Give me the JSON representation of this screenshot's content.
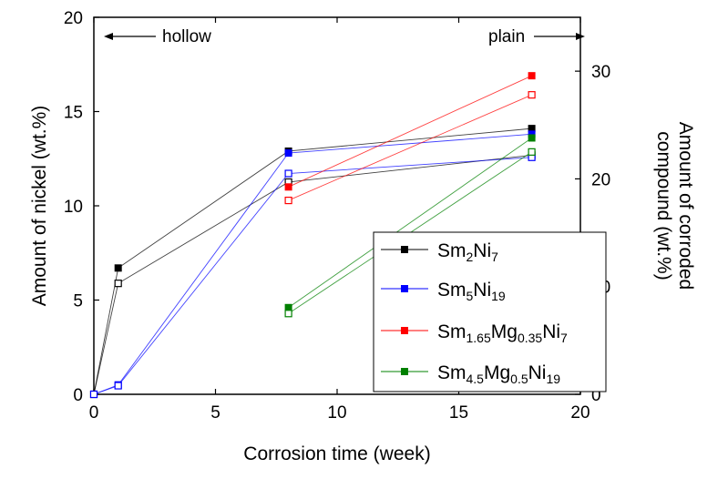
{
  "chart_data": {
    "type": "line",
    "xlabel": "Corrosion time (week)",
    "ylabel": "Amount of nickel (wt.%)",
    "ylabel_right": [
      "Amount of corroded",
      "compound (wt.%)"
    ],
    "xlim": [
      0,
      20
    ],
    "ylim": [
      0,
      20
    ],
    "ylim_right": [
      0,
      35
    ],
    "x_ticks": [
      0,
      5,
      10,
      15,
      20
    ],
    "y_ticks": [
      0,
      5,
      10,
      15,
      20
    ],
    "y_ticks_right": [
      0,
      10,
      20,
      30
    ],
    "annotations": {
      "hollow": "hollow",
      "plain": "plain"
    },
    "legend_position": "lower-right",
    "series": [
      {
        "name": "Sm2Ni7",
        "name_parts": [
          "Sm",
          "2",
          "Ni",
          "7"
        ],
        "color": "#000000",
        "nickel": {
          "x": [
            0,
            1,
            8,
            18
          ],
          "y": [
            0,
            6.7,
            12.9,
            14.1
          ]
        },
        "corroded": {
          "x": [
            0,
            1,
            8,
            18
          ],
          "y": [
            0,
            10.3,
            19.7,
            22.2
          ]
        }
      },
      {
        "name": "Sm5Ni19",
        "name_parts": [
          "Sm",
          "5",
          "Ni",
          "19"
        ],
        "color": "#0000ff",
        "nickel": {
          "x": [
            0,
            1,
            8,
            18
          ],
          "y": [
            0,
            0.5,
            12.8,
            13.8
          ]
        },
        "corroded": {
          "x": [
            0,
            1,
            8,
            18
          ],
          "y": [
            0,
            0.8,
            20.5,
            22.0
          ]
        }
      },
      {
        "name": "Sm1.65Mg0.35Ni7",
        "name_parts": [
          "Sm",
          "1.65",
          "Mg",
          "0.35",
          "Ni",
          "7"
        ],
        "color": "#ff0000",
        "nickel": {
          "x": [
            8,
            18
          ],
          "y": [
            11.0,
            16.9
          ]
        },
        "corroded": {
          "x": [
            8,
            18
          ],
          "y": [
            18.0,
            27.8
          ]
        }
      },
      {
        "name": "Sm4.5Mg0.5Ni19",
        "name_parts": [
          "Sm",
          "4.5",
          "Mg",
          "0.5",
          "Ni",
          "19"
        ],
        "color": "#008000",
        "nickel": {
          "x": [
            8,
            18
          ],
          "y": [
            4.6,
            13.6
          ]
        },
        "corroded": {
          "x": [
            8,
            18
          ],
          "y": [
            7.5,
            22.5
          ]
        }
      }
    ]
  }
}
